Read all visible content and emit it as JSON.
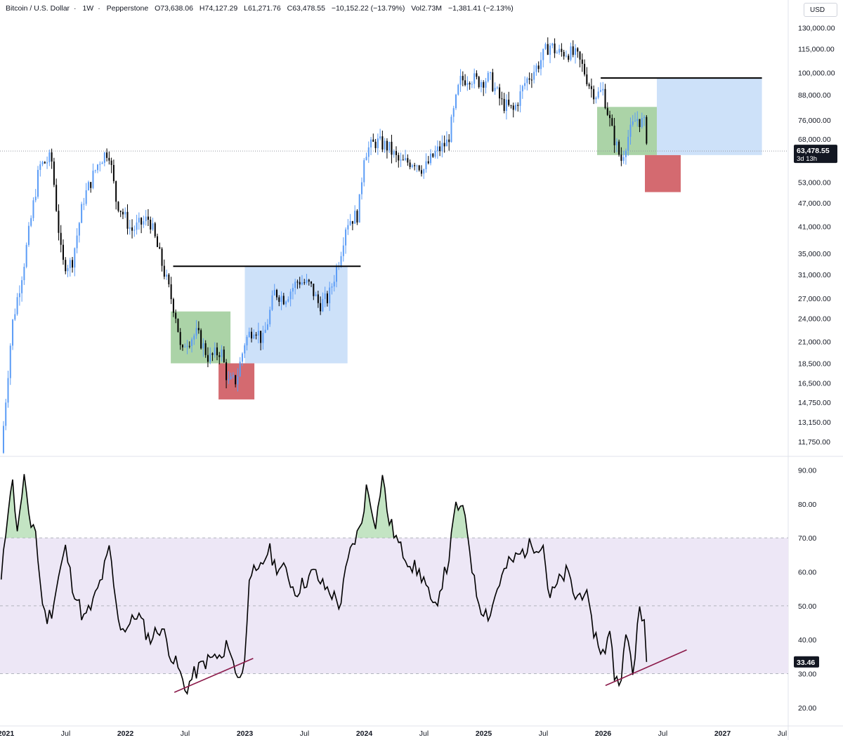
{
  "header": {
    "symbol": "Bitcoin / U.S. Dollar",
    "interval": "1W",
    "exchange": "Pepperstone",
    "open": "O73,638.06",
    "high": "H74,127.29",
    "low": "L61,271.76",
    "close": "C63,478.55",
    "change": "−10,152.22 (−13.79%)",
    "volume": "Vol2.73M",
    "vol_change": "−1,381.41 (−2.13%)"
  },
  "currency": "USD",
  "colors": {
    "up": "#5b9cf6",
    "down": "#000000",
    "rsi_band": "#ede7f6",
    "green_zone": "#8fc48a",
    "blue_zone": "#bcd7f7",
    "red_zone": "#cf5a60",
    "trendline": "#8b1a4a",
    "rsi_fill": "#9bd29b"
  },
  "chart_data": [
    {
      "type": "line",
      "name": "price",
      "scale": "log",
      "ylim": [
        11000,
        135000
      ],
      "xlim": [
        2020.95,
        2027.55
      ],
      "y_ticks": [
        "130,000.00",
        "115,000.00",
        "100,000.00",
        "88,000.00",
        "76,000.00",
        "68,000.00",
        "53,000.00",
        "47,000.00",
        "41,000.00",
        "35,000.00",
        "31,000.00",
        "27,000.00",
        "24,000.00",
        "21,000.00",
        "18,500.00",
        "16,500.00",
        "14,750.00",
        "13,150.00",
        "11,750.00"
      ],
      "y_tick_values": [
        130000,
        115000,
        100000,
        88000,
        76000,
        68000,
        53000,
        47000,
        41000,
        35000,
        31000,
        27000,
        24000,
        21000,
        18500,
        16500,
        14750,
        13150,
        11750
      ],
      "x_ticks": [
        "2021",
        "Jul",
        "2022",
        "Jul",
        "2023",
        "Jul",
        "2024",
        "Jul",
        "2025",
        "Jul",
        "2026",
        "Jul",
        "2027",
        "Jul"
      ],
      "x_tick_values": [
        2021.0,
        2021.5,
        2022.0,
        2022.5,
        2023.0,
        2023.5,
        2024.0,
        2024.5,
        2025.0,
        2025.5,
        2026.0,
        2026.5,
        2027.0,
        2027.5
      ],
      "last_price": "63,478.55",
      "last_price_value": 63478.55,
      "countdown": "3d 13h",
      "x": [
        2020.96,
        2021.05,
        2021.15,
        2021.28,
        2021.38,
        2021.47,
        2021.55,
        2021.65,
        2021.78,
        2021.86,
        2021.92,
        2022.05,
        2022.2,
        2022.33,
        2022.43,
        2022.47,
        2022.5,
        2022.6,
        2022.7,
        2022.8,
        2022.86,
        2022.93,
        2023.0,
        2023.08,
        2023.15,
        2023.25,
        2023.33,
        2023.45,
        2023.55,
        2023.62,
        2023.7,
        2023.8,
        2023.85,
        2023.95,
        2024.0,
        2024.1,
        2024.2,
        2024.3,
        2024.42,
        2024.5,
        2024.6,
        2024.7,
        2024.8,
        2024.88,
        2024.95,
        2025.05,
        2025.15,
        2025.25,
        2025.35,
        2025.45,
        2025.55,
        2025.62,
        2025.7,
        2025.78,
        2025.83,
        2025.9,
        2025.95,
        2026.0,
        2026.07,
        2026.15,
        2026.2,
        2026.28,
        2026.35,
        2026.38
      ],
      "y": [
        11000,
        23000,
        33000,
        58000,
        61000,
        33000,
        33000,
        48000,
        60000,
        64000,
        48000,
        40000,
        43000,
        31000,
        24000,
        19000,
        21000,
        22000,
        19000,
        20000,
        16500,
        16800,
        21000,
        23000,
        21000,
        28000,
        27000,
        30000,
        29000,
        26000,
        27000,
        35000,
        42000,
        44000,
        63000,
        67000,
        65000,
        59000,
        60000,
        57000,
        63000,
        67000,
        95000,
        98000,
        95000,
        97000,
        84000,
        80000,
        95000,
        104000,
        118000,
        112000,
        113000,
        110000,
        103000,
        91000,
        88000,
        90000,
        72000,
        60000,
        68000,
        77000,
        74000,
        63478
      ],
      "zones": [
        {
          "kind": "green",
          "x0": 2022.38,
          "x1": 2022.88,
          "y0": 18500,
          "y1": 25000
        },
        {
          "kind": "red",
          "x0": 2022.78,
          "x1": 2023.08,
          "y0": 15000,
          "y1": 18500
        },
        {
          "kind": "blue",
          "x0": 2023.0,
          "x1": 2023.86,
          "y0": 18500,
          "y1": 32500
        },
        {
          "kind": "green",
          "x0": 2025.95,
          "x1": 2026.45,
          "y0": 62000,
          "y1": 82000
        },
        {
          "kind": "red",
          "x0": 2026.35,
          "x1": 2026.65,
          "y0": 50000,
          "y1": 62000
        },
        {
          "kind": "blue",
          "x0": 2026.45,
          "x1": 2027.33,
          "y0": 62000,
          "y1": 97000
        }
      ],
      "levels": [
        {
          "x0": 2022.4,
          "x1": 2023.97,
          "y": 32500
        },
        {
          "x0": 2025.98,
          "x1": 2027.33,
          "y": 97000
        }
      ]
    },
    {
      "type": "line",
      "name": "rsi",
      "ylim": [
        15,
        93
      ],
      "y_ticks": [
        "90.00",
        "80.00",
        "70.00",
        "60.00",
        "50.00",
        "40.00",
        "30.00",
        "20.00"
      ],
      "y_tick_values": [
        90,
        80,
        70,
        60,
        50,
        40,
        30,
        20
      ],
      "band": [
        30,
        70
      ],
      "midline": 50,
      "last_value": "33.46",
      "last_value_num": 33.46,
      "x": [
        2020.96,
        2021.02,
        2021.05,
        2021.1,
        2021.15,
        2021.2,
        2021.24,
        2021.28,
        2021.33,
        2021.38,
        2021.45,
        2021.5,
        2021.55,
        2021.65,
        2021.72,
        2021.8,
        2021.87,
        2021.92,
        2021.97,
        2022.05,
        2022.1,
        2022.2,
        2022.3,
        2022.4,
        2022.44,
        2022.5,
        2022.58,
        2022.65,
        2022.75,
        2022.82,
        2022.86,
        2022.92,
        2022.97,
        2023.0,
        2023.04,
        2023.1,
        2023.2,
        2023.25,
        2023.35,
        2023.42,
        2023.5,
        2023.58,
        2023.65,
        2023.72,
        2023.8,
        2023.85,
        2023.9,
        2023.97,
        2024.02,
        2024.1,
        2024.15,
        2024.2,
        2024.3,
        2024.4,
        2024.5,
        2024.58,
        2024.65,
        2024.7,
        2024.77,
        2024.85,
        2024.92,
        2024.97,
        2025.05,
        2025.12,
        2025.2,
        2025.3,
        2025.4,
        2025.5,
        2025.55,
        2025.63,
        2025.7,
        2025.77,
        2025.85,
        2025.9,
        2025.97,
        2026.02,
        2026.06,
        2026.1,
        2026.15,
        2026.2,
        2026.25,
        2026.3,
        2026.35,
        2026.38
      ],
      "y": [
        57,
        80,
        88,
        71,
        89,
        72,
        76,
        58,
        46,
        48,
        60,
        67,
        57,
        46,
        50,
        58,
        67,
        50,
        43,
        45,
        48,
        40,
        44,
        34,
        32,
        25,
        30,
        33,
        35,
        34,
        40,
        30,
        30,
        33,
        62,
        58,
        67,
        62,
        60,
        54,
        57,
        60,
        56,
        54,
        50,
        61,
        68,
        73,
        85,
        74,
        89,
        76,
        67,
        62,
        58,
        48,
        57,
        62,
        80,
        76,
        57,
        50,
        47,
        56,
        62,
        65,
        68,
        68,
        52,
        57,
        60,
        52,
        55,
        45,
        38,
        35,
        45,
        27,
        30,
        42,
        30,
        48,
        45,
        33.46
      ],
      "trendlines": [
        {
          "x0": 2022.41,
          "y0": 24.5,
          "x1": 2023.07,
          "y1": 34.5
        },
        {
          "x0": 2026.02,
          "y0": 26.5,
          "x1": 2026.7,
          "y1": 37
        }
      ]
    }
  ]
}
